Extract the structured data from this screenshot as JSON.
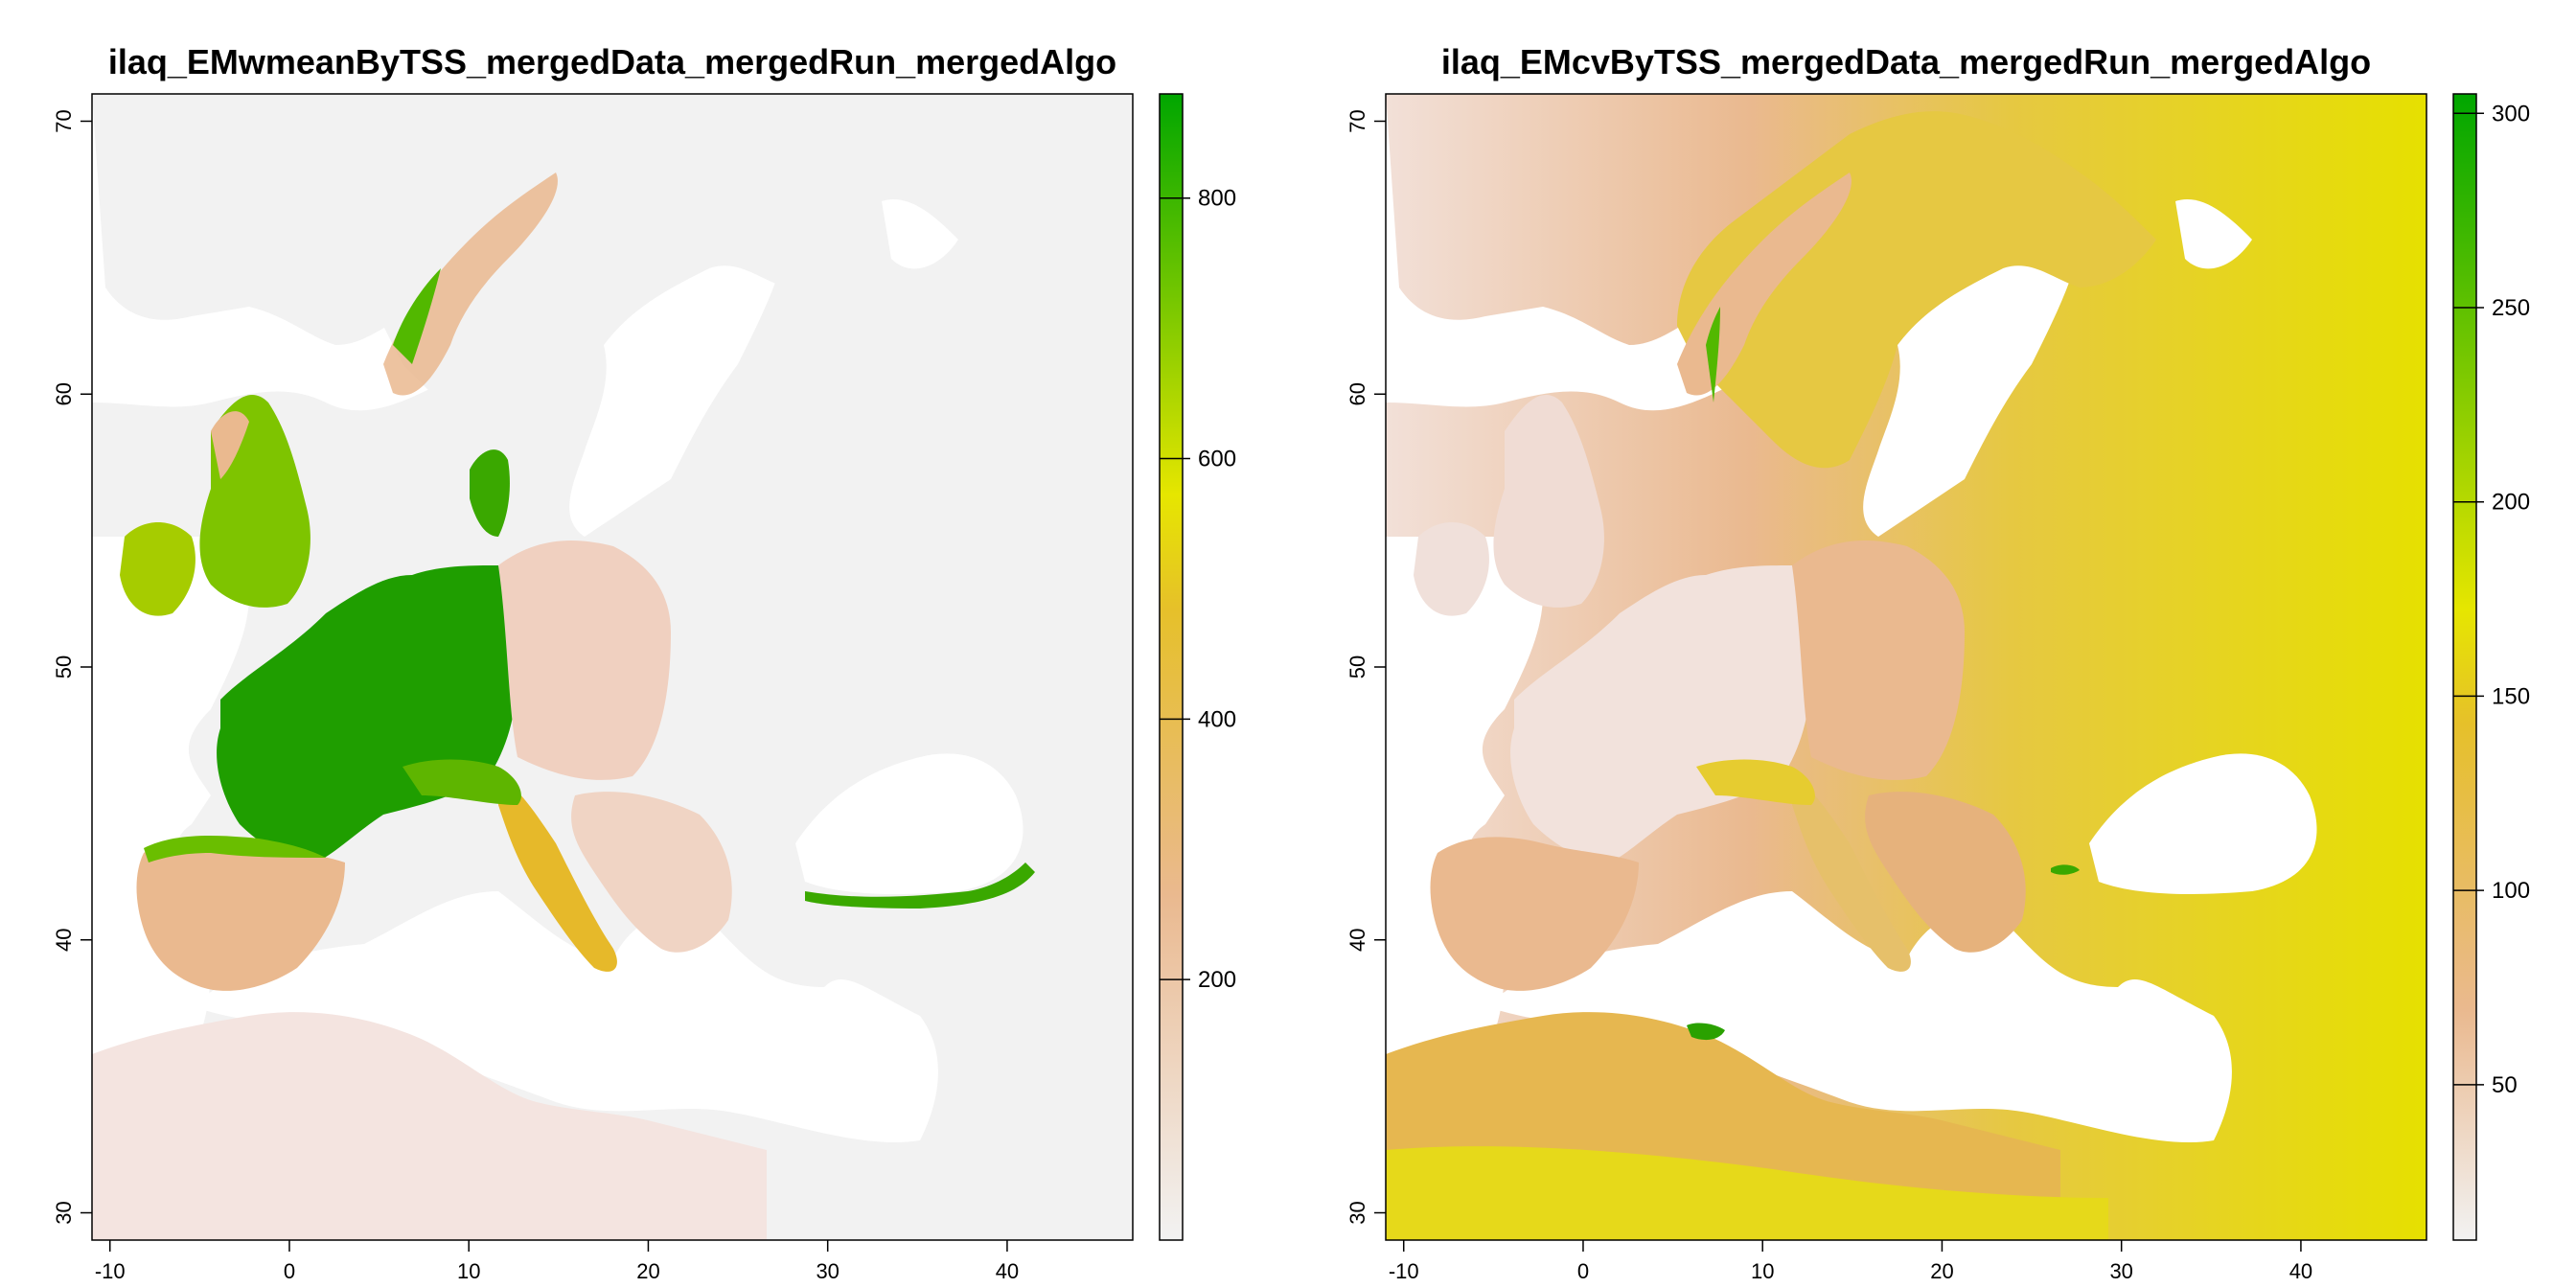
{
  "maps": [
    {
      "title": "ilaq_EMwmeanByTSS_mergedData_mergedRun_mergedAlgo",
      "x_ticks": [
        "-10",
        "0",
        "10",
        "20",
        "30",
        "40"
      ],
      "y_ticks": [
        "30",
        "40",
        "50",
        "60",
        "70"
      ],
      "legend_ticks": [
        "200",
        "400",
        "600",
        "800"
      ],
      "legend_range": [
        0,
        880
      ],
      "legend_tick_values": [
        200,
        400,
        600,
        800
      ],
      "colors": {
        "low": "#f2f2f2",
        "mid_low": "#eab98f",
        "mid": "#e6e600",
        "high": "#00a600"
      }
    },
    {
      "title": "ilaq_EMcvByTSS_mergedData_mergedRun_mergedAlgo",
      "x_ticks": [
        "-10",
        "0",
        "10",
        "20",
        "30",
        "40"
      ],
      "y_ticks": [
        "30",
        "40",
        "50",
        "60",
        "70"
      ],
      "legend_ticks": [
        "50",
        "100",
        "150",
        "200",
        "250",
        "300"
      ],
      "legend_range": [
        10,
        305
      ],
      "legend_tick_values": [
        50,
        100,
        150,
        200,
        250,
        300
      ],
      "colors": {
        "low": "#f2f2f2",
        "mid_low": "#eab98f",
        "mid": "#e6e600",
        "high": "#00a600"
      }
    }
  ],
  "map_extent": {
    "lon": [
      -11,
      47
    ],
    "lat": [
      29,
      71
    ]
  }
}
